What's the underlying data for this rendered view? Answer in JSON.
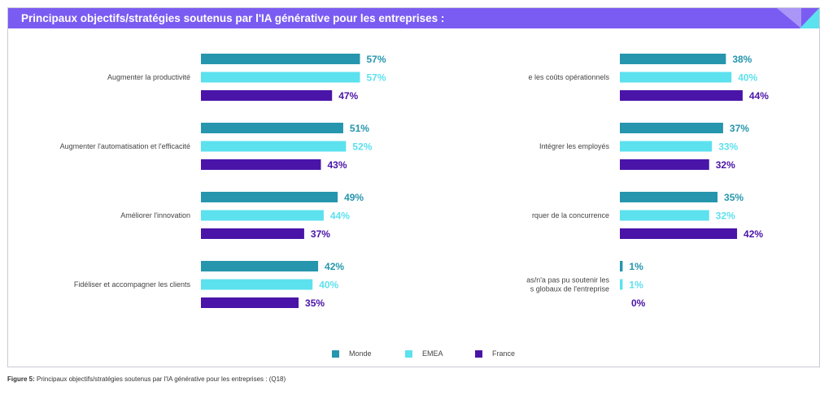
{
  "header": {
    "title": "Principaux objectifs/stratégies soutenus par l'IA générative pour les entreprises :"
  },
  "caption": {
    "prefix": "Figure 5:",
    "text": "Principaux objectifs/stratégies soutenus par l'IA générative pour les entreprises : (Q18)"
  },
  "colors": {
    "Monde": "#2596ad",
    "EMEA": "#5ce1ee",
    "France": "#4a14a8",
    "header": "#7b5cf2"
  },
  "chart_data": {
    "type": "bar",
    "orientation": "horizontal",
    "unit": "%",
    "series_names": [
      "Monde",
      "EMEA",
      "France"
    ],
    "legend_position": "bottom",
    "panels": [
      {
        "categories": [
          [
            "Augmenter la productivité"
          ],
          [
            "Augmenter l'automatisation et l'efficacité"
          ],
          [
            "Améliorer l'innovation"
          ],
          [
            "Fidéliser et accompagner les clients"
          ]
        ],
        "values": [
          [
            57,
            57,
            47
          ],
          [
            51,
            52,
            43
          ],
          [
            49,
            44,
            37
          ],
          [
            42,
            40,
            35
          ]
        ]
      },
      {
        "categories": [
          [
            "e les coûts opérationnels"
          ],
          [
            "Intégrer les employés"
          ],
          [
            "rquer de la concurrence"
          ],
          [
            "as/n'a pas pu soutenir les",
            "s globaux de l'entreprise"
          ]
        ],
        "values": [
          [
            38,
            40,
            44
          ],
          [
            37,
            33,
            32
          ],
          [
            35,
            32,
            42
          ],
          [
            1,
            1,
            0
          ]
        ]
      }
    ]
  }
}
